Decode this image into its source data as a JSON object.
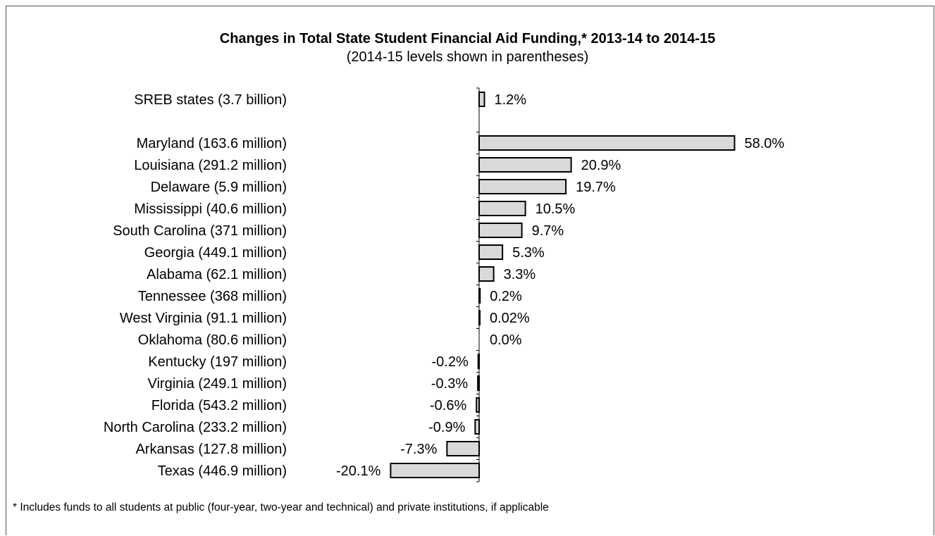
{
  "chart_data": {
    "type": "bar",
    "orientation": "horizontal",
    "title": "Changes in Total State Student Financial Aid Funding,* 2013-14 to 2014-15",
    "subtitle": "(2014-15 levels shown in parentheses)",
    "categories": [
      "SREB states (3.7 billion)",
      "Maryland (163.6 million)",
      "Louisiana (291.2 million)",
      "Delaware (5.9 million)",
      "Mississippi (40.6 million)",
      "South Carolina (371 million)",
      "Georgia (449.1 million)",
      "Alabama (62.1 million)",
      "Tennessee (368 million)",
      "West Virginia (91.1 million)",
      "Oklahoma (80.6 million)",
      "Kentucky (197 million)",
      "Virginia (249.1 million)",
      "Florida (543.2 million)",
      "North Carolina (233.2 million)",
      "Arkansas (127.8 million)",
      "Texas (446.9 million)"
    ],
    "values": [
      1.2,
      58.0,
      20.9,
      19.7,
      10.5,
      9.7,
      5.3,
      3.3,
      0.2,
      0.02,
      0.0,
      -0.2,
      -0.3,
      -0.6,
      -0.9,
      -7.3,
      -20.1
    ],
    "data_labels": [
      "1.2%",
      "58.0%",
      "20.9%",
      "19.7%",
      "10.5%",
      "9.7%",
      "5.3%",
      "3.3%",
      "0.2%",
      "0.02%",
      "0.0%",
      "-0.2%",
      "-0.3%",
      "-0.6%",
      "-0.9%",
      "-7.3%",
      "-20.1%"
    ],
    "bar_color": "#d9d9d9",
    "bar_outline": "#000000",
    "grid": false,
    "legend": "none"
  },
  "footnote": "* Includes funds to all students at public (four-year, two-year and technical) and private institutions, if applicable"
}
